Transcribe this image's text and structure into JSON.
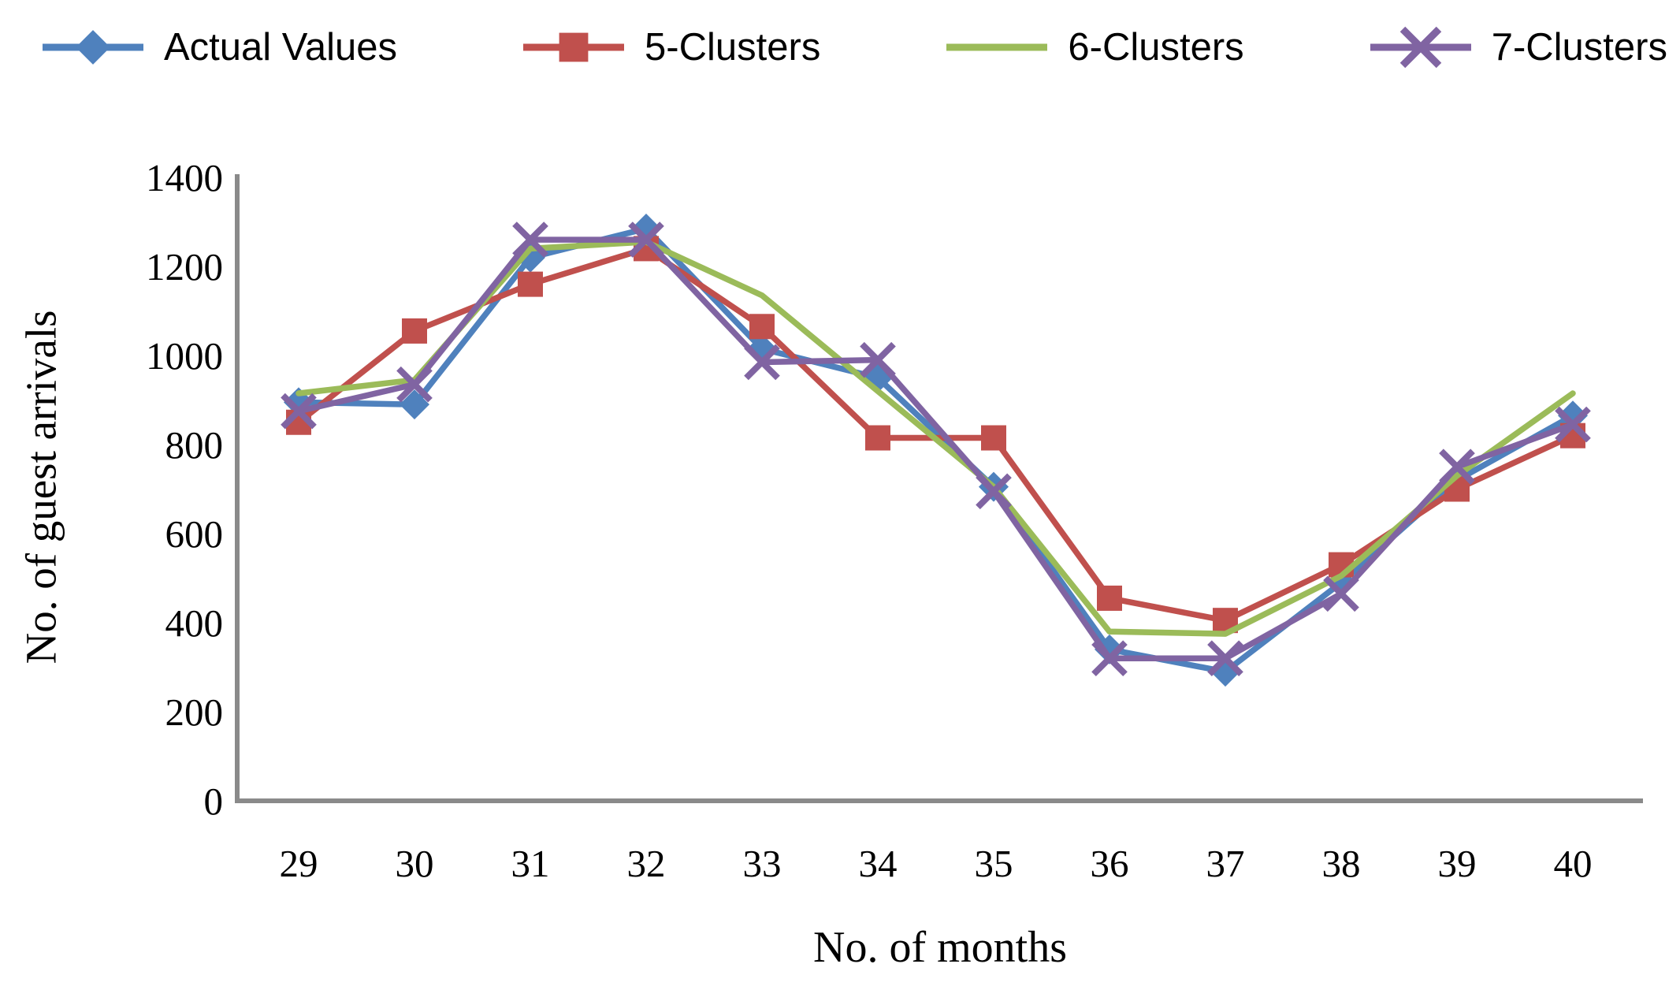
{
  "chart_data": {
    "type": "line",
    "x": [
      29,
      30,
      31,
      32,
      33,
      34,
      35,
      36,
      37,
      38,
      39,
      40
    ],
    "series": [
      {
        "name": "Actual Values",
        "color": "#4F81BD",
        "marker": "diamond",
        "values": [
          895,
          890,
          1220,
          1285,
          1015,
          950,
          705,
          340,
          290,
          490,
          720,
          865
        ]
      },
      {
        "name": "5-Clusters",
        "color": "#C0504D",
        "marker": "square",
        "values": [
          850,
          1055,
          1160,
          1240,
          1065,
          815,
          815,
          455,
          405,
          530,
          700,
          820
        ]
      },
      {
        "name": "6-Clusters",
        "color": "#9BBB59",
        "marker": "none",
        "values": [
          915,
          945,
          1240,
          1255,
          1135,
          920,
          705,
          380,
          375,
          505,
          730,
          915
        ]
      },
      {
        "name": "7-Clusters",
        "color": "#8064A2",
        "marker": "x",
        "values": [
          875,
          935,
          1260,
          1260,
          985,
          990,
          695,
          320,
          320,
          465,
          750,
          845
        ]
      }
    ],
    "title": "",
    "xlabel": "No. of months",
    "ylabel": "No. of guest arrivals",
    "ylim": [
      0,
      1400
    ],
    "ytick_step": 200,
    "y_ticks": [
      0,
      200,
      400,
      600,
      800,
      1000,
      1200,
      1400
    ],
    "grid": false,
    "legend_position": "top",
    "axis_color": "#8A8A8A",
    "text_color": "#000000"
  }
}
